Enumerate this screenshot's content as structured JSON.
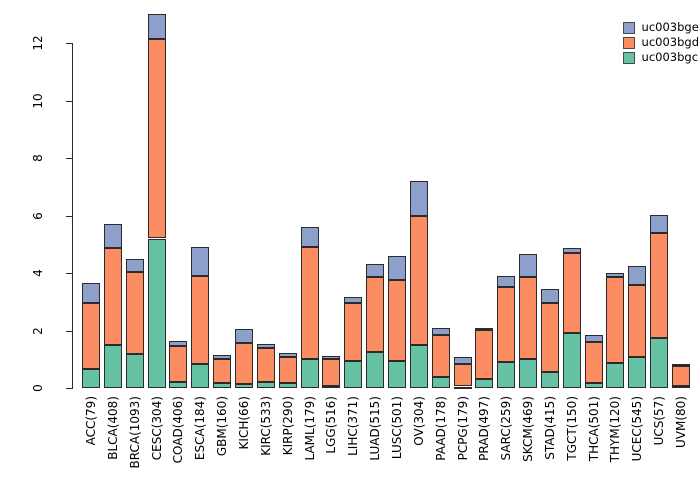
{
  "chart_data": {
    "type": "bar",
    "stacked": true,
    "title": "",
    "xlabel": "",
    "ylabel": "",
    "grid": false,
    "ylim": [
      0,
      13.15
    ],
    "yticks": [
      0,
      2,
      4,
      6,
      8,
      10,
      12
    ],
    "categories": [
      "ACC(79)",
      "BLCA(408)",
      "BRCA(1093)",
      "CESC(304)",
      "COAD(406)",
      "ESCA(184)",
      "GBM(160)",
      "KICH(66)",
      "KIRC(533)",
      "KIRP(290)",
      "LAML(179)",
      "LGG(516)",
      "LIHC(371)",
      "LUAD(515)",
      "LUSC(501)",
      "OV(304)",
      "PAAD(178)",
      "PCPG(179)",
      "PRAD(497)",
      "SARC(259)",
      "SKCM(469)",
      "STAD(415)",
      "TGCT(150)",
      "THCA(501)",
      "THYM(120)",
      "UCEC(545)",
      "UCS(57)",
      "UVM(80)"
    ],
    "series": [
      {
        "name": "uc003bgc",
        "color": "#66C2A5",
        "values": [
          0.65,
          1.5,
          1.18,
          5.2,
          0.2,
          0.82,
          0.16,
          0.15,
          0.22,
          0.16,
          1.0,
          0.06,
          0.94,
          1.26,
          0.95,
          1.5,
          0.39,
          0.05,
          0.3,
          0.9,
          1.0,
          0.57,
          1.92,
          0.16,
          0.88,
          1.09,
          1.73,
          0.08
        ]
      },
      {
        "name": "uc003bgd",
        "color": "#FC8D62",
        "values": [
          2.3,
          3.38,
          2.87,
          6.95,
          1.26,
          3.08,
          0.84,
          1.4,
          1.18,
          0.91,
          3.91,
          0.94,
          2.03,
          2.59,
          2.81,
          4.47,
          1.45,
          0.78,
          1.72,
          2.6,
          2.86,
          2.38,
          2.77,
          1.45,
          2.97,
          2.49,
          3.65,
          0.67
        ]
      },
      {
        "name": "uc003bge",
        "color": "#8DA0CB",
        "values": [
          0.69,
          0.82,
          0.43,
          0.87,
          0.16,
          0.99,
          0.15,
          0.49,
          0.13,
          0.16,
          0.68,
          0.11,
          0.21,
          0.45,
          0.83,
          1.23,
          0.26,
          0.24,
          0.08,
          0.4,
          0.79,
          0.48,
          0.17,
          0.23,
          0.16,
          0.66,
          0.64,
          0.1
        ]
      }
    ],
    "legend": {
      "position": "top-right",
      "items": [
        {
          "label": "uc003bge",
          "color": "#8DA0CB"
        },
        {
          "label": "uc003bgd",
          "color": "#FC8D62"
        },
        {
          "label": "uc003bgc",
          "color": "#66C2A5"
        }
      ]
    }
  }
}
